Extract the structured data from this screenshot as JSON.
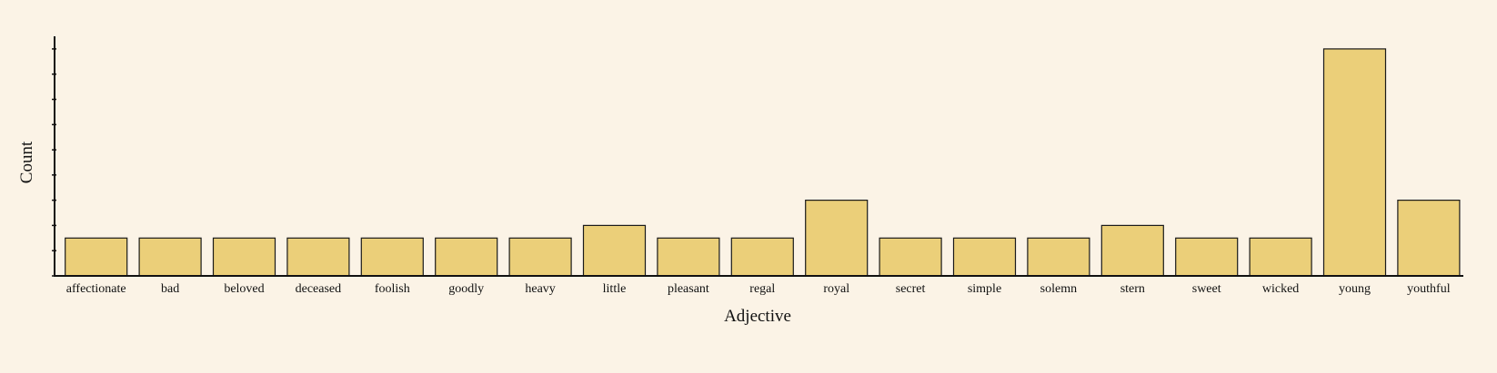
{
  "chart_data": {
    "type": "bar",
    "title": "",
    "xlabel": "Adjective",
    "ylabel": "Count",
    "categories": [
      "affectionate",
      "bad",
      "beloved",
      "deceased",
      "foolish",
      "goodly",
      "heavy",
      "little",
      "pleasant",
      "regal",
      "royal",
      "secret",
      "simple",
      "solemn",
      "stern",
      "sweet",
      "wicked",
      "young",
      "youthful"
    ],
    "values": [
      3,
      3,
      3,
      3,
      3,
      3,
      3,
      4,
      3,
      3,
      6,
      3,
      3,
      3,
      4,
      3,
      3,
      18,
      6
    ],
    "ylim": [
      0,
      19
    ],
    "y_tick_labels_shown": false,
    "grid": false,
    "legend": "none",
    "colors": {
      "bar_fill": "#ebcf79",
      "bar_stroke": "#1a1a1a",
      "axis": "#111111",
      "background": "#fbf3e6"
    }
  }
}
